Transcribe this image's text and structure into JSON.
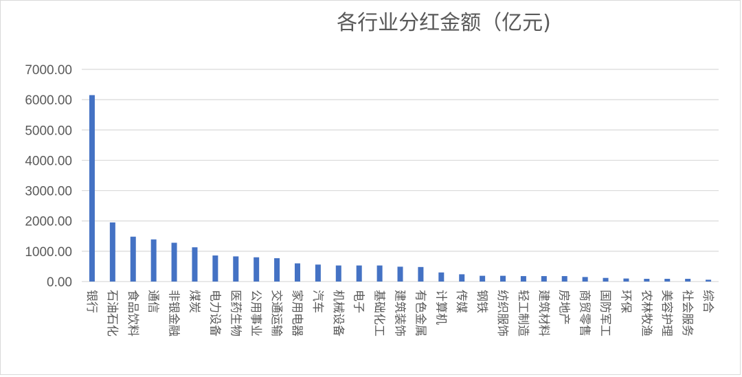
{
  "chart_data": {
    "type": "bar",
    "title": "各行业分红金额（亿元)",
    "xlabel": "",
    "ylabel": "",
    "ylim": [
      0,
      7000
    ],
    "yticks": [
      "0.00",
      "1000.00",
      "2000.00",
      "3000.00",
      "4000.00",
      "5000.00",
      "6000.00",
      "7000.00"
    ],
    "grid": true,
    "legend": "none",
    "bar_color": "#4472c4",
    "categories": [
      "银行",
      "石油石化",
      "食品饮料",
      "通信",
      "非银金融",
      "煤炭",
      "电力设备",
      "医药生物",
      "公用事业",
      "交通运输",
      "家用电器",
      "汽车",
      "机械设备",
      "电子",
      "基础化工",
      "建筑装饰",
      "有色金属",
      "计算机",
      "传媒",
      "钢铁",
      "纺织服饰",
      "轻工制造",
      "建筑材料",
      "房地产",
      "商贸零售",
      "国防军工",
      "环保",
      "农林牧渔",
      "美容护理",
      "社会服务",
      "综合"
    ],
    "values": [
      6150,
      1950,
      1480,
      1390,
      1280,
      1130,
      860,
      830,
      800,
      770,
      600,
      560,
      530,
      530,
      530,
      490,
      480,
      300,
      240,
      190,
      190,
      180,
      180,
      180,
      150,
      120,
      100,
      90,
      90,
      90,
      60
    ]
  }
}
